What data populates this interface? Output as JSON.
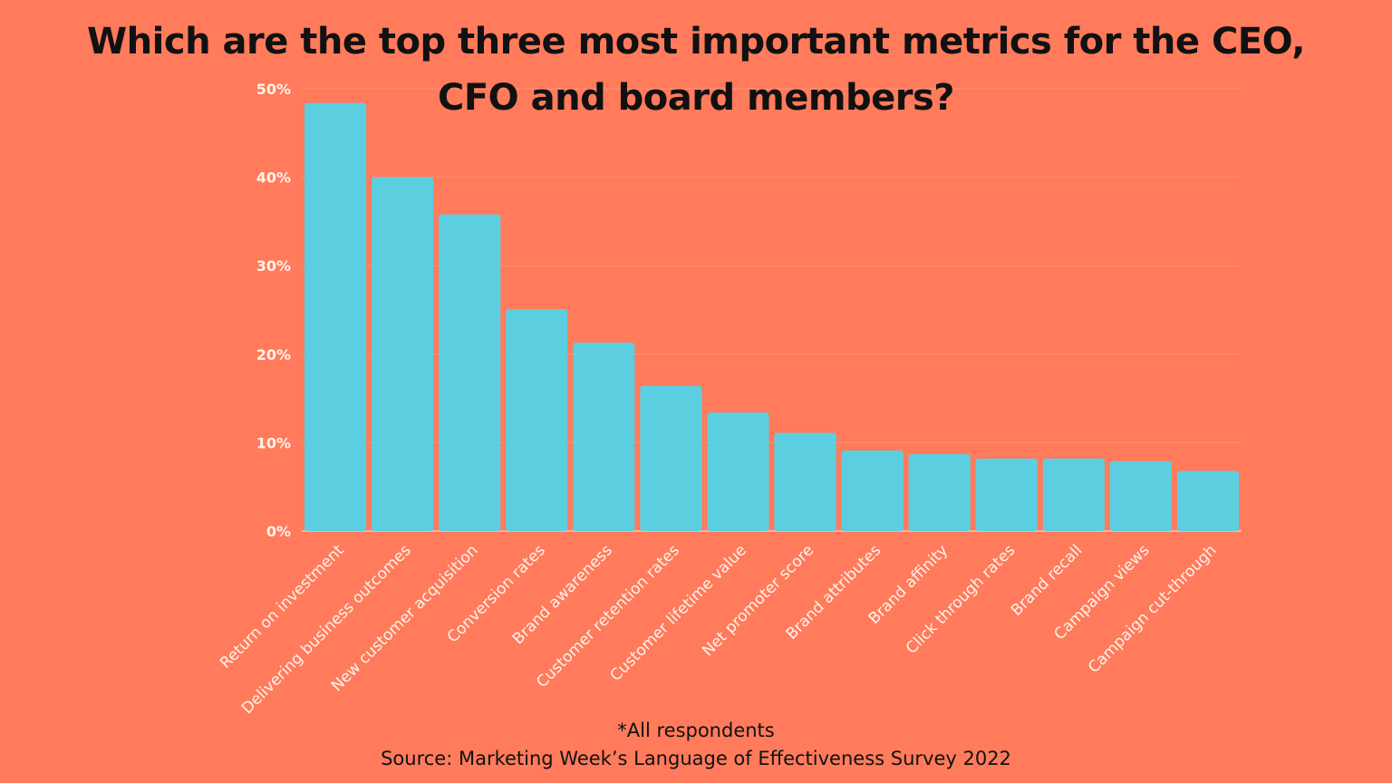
{
  "title_line1": "Which are the top three most important metrics for the CEO,",
  "title_line2": "CFO and board members?",
  "footnote": "*All respondents",
  "source": "Source: Marketing Week’s Language of Effectiveness Survey 2022",
  "colors": {
    "background": "#FF7B5C",
    "bar": "#5BCFE0",
    "text_light": "#FFF4EC",
    "title": "#111111"
  },
  "chart_data": {
    "type": "bar",
    "categories": [
      "Return on investment",
      "Delivering business outcomes",
      "New customer acquisition",
      "Conversion rates",
      "Brand awareness",
      "Customer retention rates",
      "Customer lifetime value",
      "Net promoter score",
      "Brand attributes",
      "Brand affinity",
      "Click through rates",
      "Brand recall",
      "Campaign views",
      "Campaign cut-through"
    ],
    "values": [
      48.4,
      40,
      35.8,
      25.1,
      21.3,
      16.4,
      13.4,
      11.1,
      9.1,
      8.7,
      8.2,
      8.2,
      7.9,
      6.8
    ],
    "yticks": [
      "0%",
      "10%",
      "20%",
      "30%",
      "40%",
      "50%"
    ],
    "ylim": [
      0,
      50
    ],
    "grid": true,
    "legend": "none",
    "title": "Which are the top three most important metrics for the CEO, CFO and board members?",
    "xlabel": "",
    "ylabel": ""
  }
}
